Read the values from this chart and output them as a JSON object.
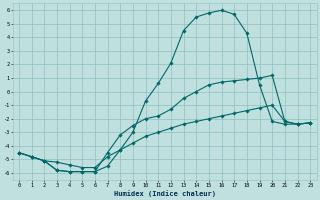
{
  "xlabel": "Humidex (Indice chaleur)",
  "xlim": [
    -0.5,
    23.5
  ],
  "ylim": [
    -6.5,
    6.5
  ],
  "xticks": [
    0,
    1,
    2,
    3,
    4,
    5,
    6,
    7,
    8,
    9,
    10,
    11,
    12,
    13,
    14,
    15,
    16,
    17,
    18,
    19,
    20,
    21,
    22,
    23
  ],
  "yticks": [
    -6,
    -5,
    -4,
    -3,
    -2,
    -1,
    0,
    1,
    2,
    3,
    4,
    5,
    6
  ],
  "bg_color": "#c0e0e0",
  "grid_color": "#90c0c0",
  "line_color": "#006868",
  "line1_x": [
    0,
    1,
    2,
    3,
    4,
    5,
    6,
    7,
    8,
    9,
    10,
    11,
    12,
    13,
    14,
    15,
    16,
    17,
    18,
    19,
    20,
    21,
    22,
    23
  ],
  "line1_y": [
    -4.5,
    -4.8,
    -5.1,
    -5.8,
    -5.9,
    -5.9,
    -5.9,
    -5.5,
    -4.3,
    -3.0,
    -0.7,
    0.6,
    2.1,
    4.5,
    5.5,
    5.8,
    6.0,
    5.7,
    4.3,
    0.5,
    -2.2,
    -2.4,
    -2.4,
    -2.3
  ],
  "line2_x": [
    0,
    1,
    2,
    3,
    4,
    5,
    6,
    7,
    8,
    9,
    10,
    11,
    12,
    13,
    14,
    15,
    16,
    17,
    18,
    19,
    20,
    21,
    22,
    23
  ],
  "line2_y": [
    -4.5,
    -4.8,
    -5.1,
    -5.8,
    -5.9,
    -5.9,
    -5.9,
    -4.5,
    -3.2,
    -2.5,
    -2.0,
    -1.8,
    -1.3,
    -0.5,
    0.0,
    0.5,
    0.7,
    0.8,
    0.9,
    1.0,
    1.2,
    -2.2,
    -2.4,
    -2.3
  ],
  "line3_x": [
    0,
    1,
    2,
    3,
    4,
    5,
    6,
    7,
    8,
    9,
    10,
    11,
    12,
    13,
    14,
    15,
    16,
    17,
    18,
    19,
    20,
    21,
    22,
    23
  ],
  "line3_y": [
    -4.5,
    -4.8,
    -5.1,
    -5.2,
    -5.4,
    -5.6,
    -5.6,
    -4.8,
    -4.3,
    -3.8,
    -3.3,
    -3.0,
    -2.7,
    -2.4,
    -2.2,
    -2.0,
    -1.8,
    -1.6,
    -1.4,
    -1.2,
    -1.0,
    -2.2,
    -2.4,
    -2.3
  ],
  "markersize": 1.8,
  "linewidth": 0.8
}
